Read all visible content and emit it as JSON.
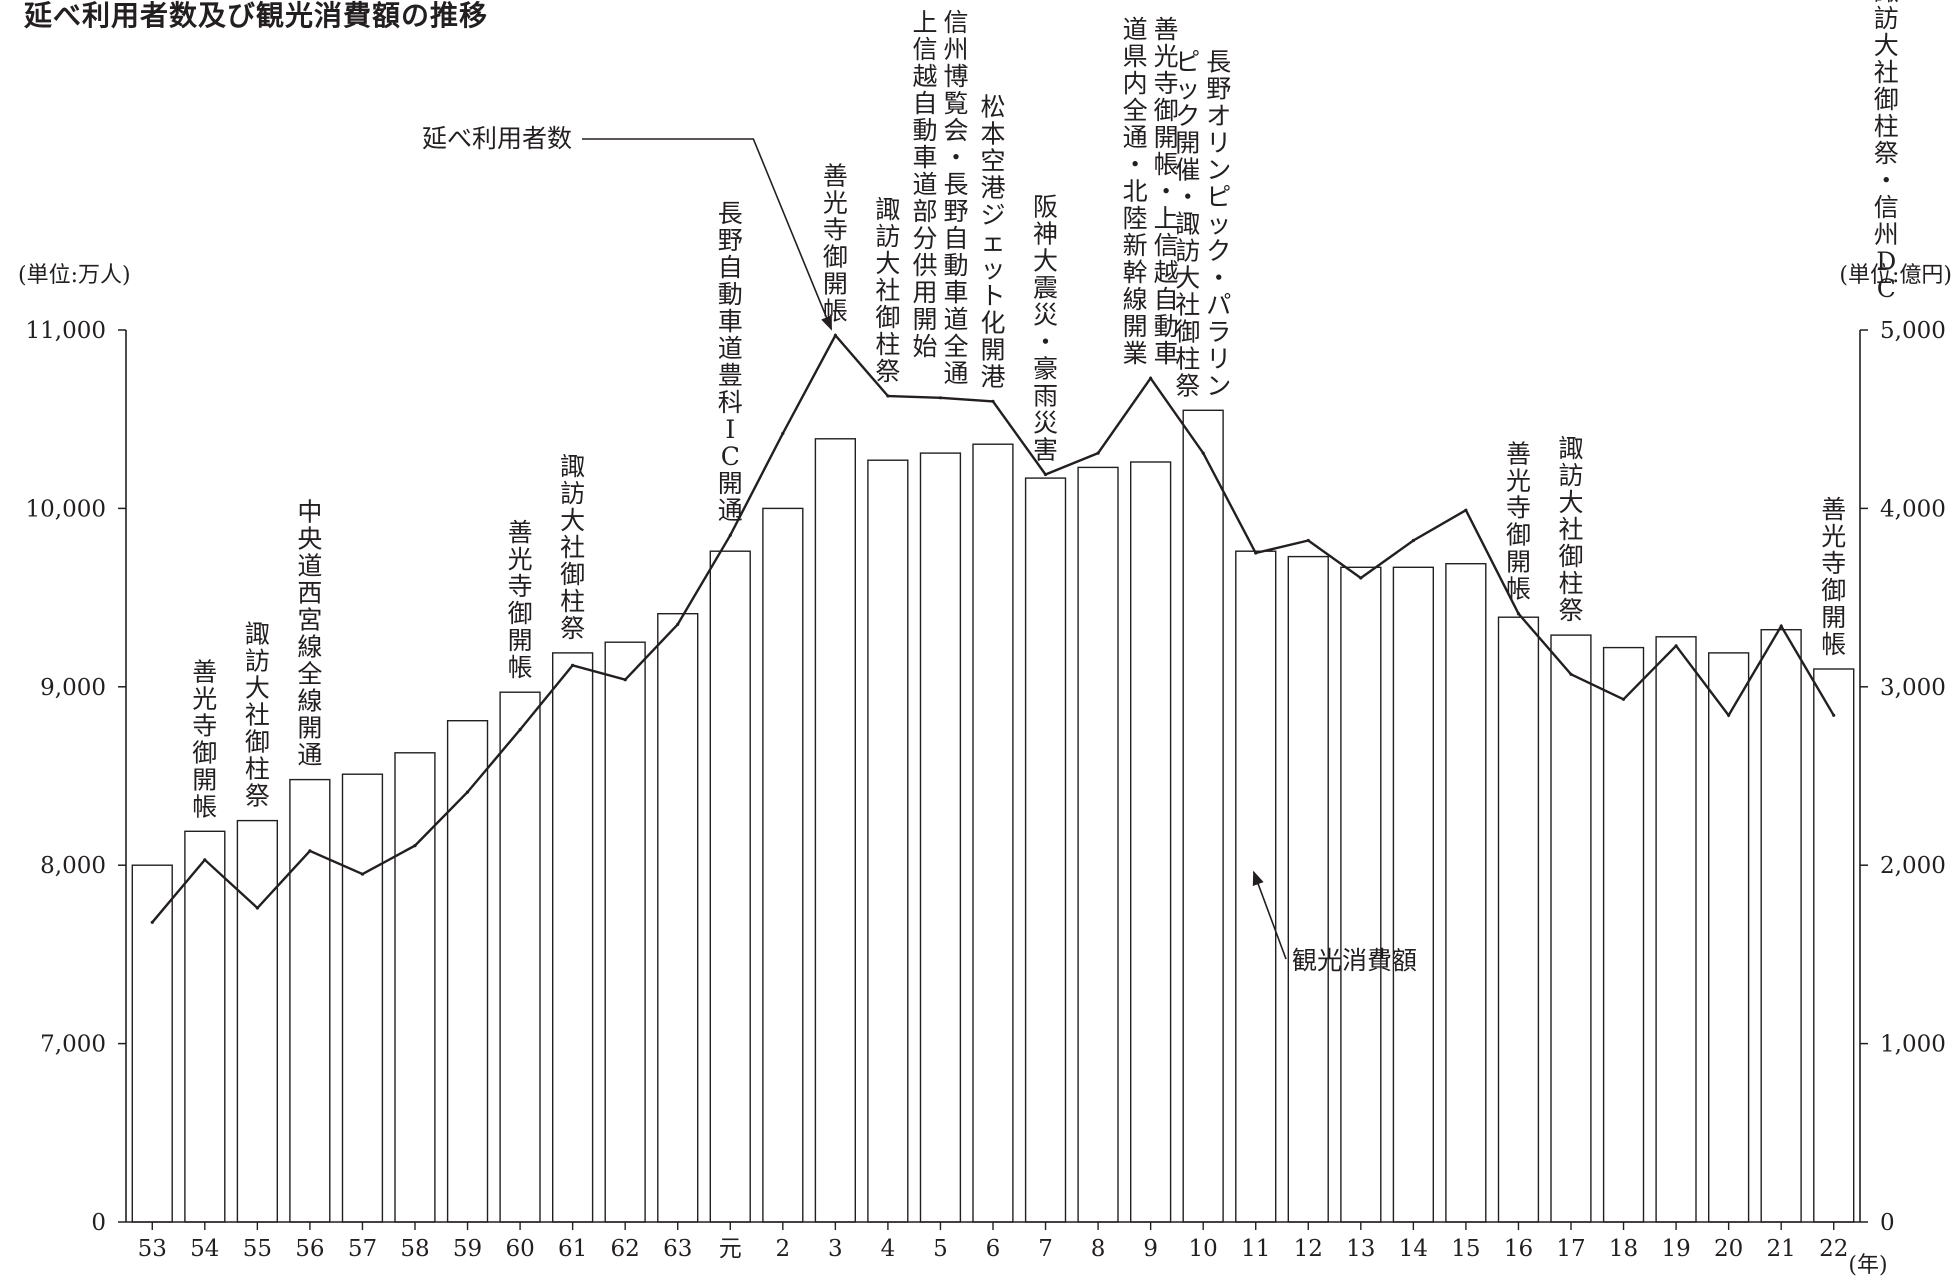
{
  "title": "延べ利用者数及び観光消費額の推移",
  "chart_data": {
    "type": "bar+line",
    "categories": [
      "53",
      "54",
      "55",
      "56",
      "57",
      "58",
      "59",
      "60",
      "61",
      "62",
      "63",
      "元",
      "2",
      "3",
      "4",
      "5",
      "6",
      "7",
      "8",
      "9",
      "10",
      "11",
      "12",
      "13",
      "14",
      "15",
      "16",
      "17",
      "18",
      "19",
      "20",
      "21",
      "22"
    ],
    "x_unit": "(年)",
    "left_axis": {
      "unit": "(単位:万人)",
      "min": 0,
      "max": 11000,
      "ticks": [
        {
          "v": 0,
          "label": "0"
        },
        {
          "v": 7000,
          "label": "7,000"
        },
        {
          "v": 8000,
          "label": "8,000"
        },
        {
          "v": 9000,
          "label": "9,000"
        },
        {
          "v": 10000,
          "label": "10,000"
        },
        {
          "v": 11000,
          "label": "11,000"
        }
      ]
    },
    "right_axis": {
      "unit": "(単位:億円)",
      "min": 0,
      "max": 5000,
      "ticks": [
        {
          "v": 0,
          "label": "0"
        },
        {
          "v": 1000,
          "label": "1,000"
        },
        {
          "v": 2000,
          "label": "2,000"
        },
        {
          "v": 3000,
          "label": "3,000"
        },
        {
          "v": 4000,
          "label": "4,000"
        },
        {
          "v": 5000,
          "label": "5,000"
        }
      ]
    },
    "bars": {
      "name": "観光消費額",
      "axis": "right",
      "values": [
        2000,
        2190,
        2250,
        2480,
        2510,
        2630,
        2810,
        2970,
        3190,
        3250,
        3410,
        3760,
        4000,
        4390,
        4270,
        4310,
        4360,
        4170,
        4230,
        4260,
        4550,
        3760,
        3730,
        3670,
        3670,
        3690,
        3390,
        3290,
        3220,
        3280,
        3190,
        3320,
        3100
      ]
    },
    "line": {
      "name": "延べ利用者数",
      "axis": "left",
      "values": [
        7680,
        8030,
        7760,
        8080,
        7950,
        8110,
        8410,
        8760,
        9120,
        9040,
        9350,
        9850,
        10420,
        10970,
        10630,
        10620,
        10600,
        10190,
        10310,
        10730,
        10310,
        9750,
        9820,
        9610,
        9820,
        9990,
        9410,
        9070,
        8930,
        9230,
        8840,
        9340,
        8840
      ]
    },
    "series_labels": [
      {
        "text": "延べ利用者数",
        "target": "line",
        "cat": 13
      },
      {
        "text": "観光消費額",
        "target": "bars",
        "cat": 21
      }
    ],
    "events": [
      {
        "cat": 1,
        "columns": [
          "善光寺御開帳"
        ]
      },
      {
        "cat": 2,
        "columns": [
          "諏訪大社御柱祭"
        ]
      },
      {
        "cat": 3,
        "columns": [
          "中央道西宮線全線開通"
        ]
      },
      {
        "cat": 7,
        "columns": [
          "善光寺御開帳"
        ]
      },
      {
        "cat": 8,
        "columns": [
          "諏訪大社御柱祭"
        ]
      },
      {
        "cat": 11,
        "columns": [
          "長野自動車道豊科IC開通"
        ]
      },
      {
        "cat": 13,
        "columns": [
          "善光寺御開帳"
        ]
      },
      {
        "cat": 14,
        "columns": [
          "諏訪大社御柱祭"
        ]
      },
      {
        "cat": 15,
        "columns": [
          "信州博覧会・長野自動車道全通",
          "上信越自動車道部分供用開始"
        ]
      },
      {
        "cat": 16,
        "columns": [
          "松本空港ジェット化開港"
        ]
      },
      {
        "cat": 17,
        "columns": [
          "阪神大震災・豪雨災害"
        ]
      },
      {
        "cat": 19,
        "columns": [
          "善光寺御開帳・上信越自動車",
          "道県内全通・北陸新幹線開業"
        ]
      },
      {
        "cat": 20,
        "columns": [
          "長野オリンピック・パラリン",
          "ピック開催・諏訪大社御柱祭"
        ]
      },
      {
        "cat": 26,
        "columns": [
          "善光寺御開帳"
        ]
      },
      {
        "cat": 27,
        "columns": [
          "諏訪大社御柱祭"
        ]
      },
      {
        "cat": 32,
        "columns": [
          "善光寺御開帳"
        ]
      },
      {
        "cat": 33,
        "columns": [
          "諏訪大社御柱祭・信州DC"
        ]
      }
    ]
  }
}
